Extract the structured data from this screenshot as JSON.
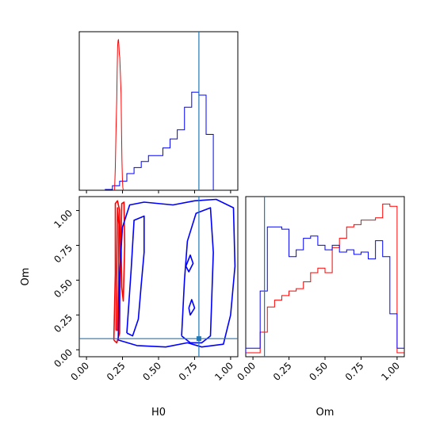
{
  "colors": {
    "series_a": "#ff0000",
    "series_b": "#0000ff",
    "truth": "#1f77b4",
    "axes": "#000000",
    "background": "#ffffff"
  },
  "chart_data": [
    {
      "id": "hist_H0",
      "type": "histogram",
      "position": "top-left",
      "xlim": [
        -0.05,
        1.05
      ],
      "y_ticks_shown": false,
      "x_tick_labels_shown": false,
      "truth_x": 0.78,
      "series": [
        {
          "color": "#0000ff",
          "bin_edges": [
            0.13,
            0.18,
            0.23,
            0.28,
            0.33,
            0.38,
            0.43,
            0.48,
            0.53,
            0.58,
            0.63,
            0.68,
            0.73,
            0.78,
            0.83,
            0.88
          ],
          "counts": [
            0.5,
            3,
            6,
            11,
            15,
            19,
            23,
            23,
            28,
            34,
            40,
            55,
            65,
            63,
            37
          ]
        },
        {
          "color": "#ff0000",
          "style": "narrow-peak",
          "x": [
            0.195,
            0.2,
            0.205,
            0.21,
            0.213,
            0.216,
            0.219,
            0.222,
            0.225,
            0.228,
            0.231,
            0.234,
            0.237,
            0.24,
            0.243,
            0.246,
            0.249,
            0.252,
            0.255
          ],
          "y": [
            0,
            15,
            40,
            60,
            80,
            95,
            99,
            100,
            96,
            90,
            88,
            80,
            72,
            64,
            40,
            20,
            8,
            2,
            0
          ]
        }
      ]
    },
    {
      "id": "contour_H0_Om",
      "type": "contour",
      "position": "bottom-left",
      "xlabel": "H0",
      "ylabel": "Om",
      "xlim": [
        -0.05,
        1.05
      ],
      "ylim": [
        -0.05,
        1.1
      ],
      "x_ticks": [
        "0.00",
        "0.25",
        "0.50",
        "0.75",
        "1.00"
      ],
      "y_ticks": [
        "0.00",
        "0.25",
        "0.50",
        "0.75",
        "1.00"
      ],
      "truth": [
        0.78,
        0.08
      ],
      "series": [
        {
          "color": "#ff0000",
          "contours": [
            [
              [
                0.19,
                0.07
              ],
              [
                0.2,
                0.55
              ],
              [
                0.2,
                1.05
              ],
              [
                0.215,
                1.07
              ],
              [
                0.23,
                1.0
              ],
              [
                0.235,
                0.6
              ],
              [
                0.23,
                0.12
              ],
              [
                0.21,
                0.05
              ],
              [
                0.19,
                0.07
              ]
            ],
            [
              [
                0.205,
                0.14
              ],
              [
                0.21,
                0.6
              ],
              [
                0.215,
                1.02
              ],
              [
                0.225,
                0.9
              ],
              [
                0.222,
                0.5
              ],
              [
                0.215,
                0.14
              ],
              [
                0.205,
                0.14
              ]
            ],
            [
              [
                0.24,
                0.8
              ],
              [
                0.245,
                1.05
              ],
              [
                0.26,
                1.06
              ],
              [
                0.265,
                0.75
              ],
              [
                0.255,
                0.35
              ],
              [
                0.245,
                0.45
              ],
              [
                0.24,
                0.8
              ]
            ]
          ]
        },
        {
          "color": "#0000ff",
          "contours": [
            [
              [
                0.22,
                0.07
              ],
              [
                0.23,
                0.55
              ],
              [
                0.25,
                0.88
              ],
              [
                0.3,
                1.04
              ],
              [
                0.4,
                1.06
              ],
              [
                0.6,
                1.04
              ],
              [
                0.75,
                1.07
              ],
              [
                0.9,
                1.08
              ],
              [
                1.02,
                1.02
              ],
              [
                1.03,
                0.6
              ],
              [
                1.0,
                0.25
              ],
              [
                0.95,
                0.04
              ],
              [
                0.8,
                0.02
              ],
              [
                0.7,
                0.05
              ],
              [
                0.55,
                0.02
              ],
              [
                0.35,
                0.03
              ],
              [
                0.22,
                0.07
              ]
            ],
            [
              [
                0.28,
                0.12
              ],
              [
                0.31,
                0.58
              ],
              [
                0.33,
                0.93
              ],
              [
                0.4,
                0.96
              ],
              [
                0.4,
                0.7
              ],
              [
                0.38,
                0.47
              ],
              [
                0.36,
                0.22
              ],
              [
                0.32,
                0.1
              ],
              [
                0.28,
                0.12
              ]
            ],
            [
              [
                0.66,
                0.1
              ],
              [
                0.68,
                0.5
              ],
              [
                0.7,
                0.78
              ],
              [
                0.76,
                0.98
              ],
              [
                0.86,
                1.02
              ],
              [
                0.88,
                0.7
              ],
              [
                0.87,
                0.4
              ],
              [
                0.86,
                0.1
              ],
              [
                0.8,
                0.05
              ],
              [
                0.72,
                0.05
              ],
              [
                0.66,
                0.1
              ]
            ],
            [
              [
                0.69,
                0.6
              ],
              [
                0.72,
                0.68
              ],
              [
                0.74,
                0.62
              ],
              [
                0.71,
                0.56
              ],
              [
                0.69,
                0.6
              ]
            ],
            [
              [
                0.71,
                0.3
              ],
              [
                0.73,
                0.36
              ],
              [
                0.75,
                0.3
              ],
              [
                0.72,
                0.25
              ],
              [
                0.71,
                0.3
              ]
            ]
          ]
        }
      ]
    },
    {
      "id": "hist_Om",
      "type": "histogram",
      "position": "bottom-right",
      "xlabel": "Om",
      "xlim": [
        -0.05,
        1.05
      ],
      "x_ticks": [
        "0.00",
        "0.25",
        "0.50",
        "0.75",
        "1.00"
      ],
      "y_ticks_shown": false,
      "truth_x": 0.08,
      "series": [
        {
          "color": "#ff0000",
          "bin_edges": [
            -0.05,
            0.0,
            0.05,
            0.1,
            0.15,
            0.2,
            0.25,
            0.3,
            0.35,
            0.4,
            0.45,
            0.5,
            0.55,
            0.6,
            0.65,
            0.7,
            0.75,
            0.8,
            0.85,
            0.9,
            0.95,
            1.0,
            1.05
          ],
          "counts": [
            0,
            0,
            9,
            20,
            23,
            25,
            27,
            28,
            31,
            35,
            37,
            35,
            46,
            50,
            55,
            56,
            58,
            58,
            59,
            65,
            64,
            0
          ]
        },
        {
          "color": "#0000ff",
          "bin_edges": [
            -0.05,
            0.0,
            0.05,
            0.1,
            0.15,
            0.2,
            0.25,
            0.3,
            0.35,
            0.4,
            0.45,
            0.5,
            0.55,
            0.6,
            0.65,
            0.7,
            0.75,
            0.8,
            0.85,
            0.9,
            0.95,
            1.0,
            1.05
          ],
          "counts": [
            2,
            2,
            27,
            55,
            55,
            54,
            42,
            45,
            50,
            51,
            47,
            45,
            47,
            44,
            45,
            43,
            44,
            41,
            49,
            42,
            17,
            2
          ]
        }
      ]
    }
  ]
}
